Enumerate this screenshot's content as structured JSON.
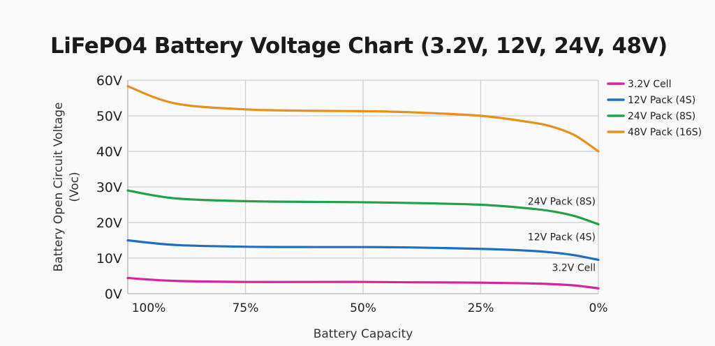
{
  "chart_data": {
    "type": "line",
    "title": "LiFePO4 Battery Voltage Chart (3.2V, 12V, 24V, 48V)",
    "xlabel": "Battery Capacity",
    "ylabel": "Battery Open Circuit Voltage",
    "ylabel_unit": "(Voc)",
    "x": [
      100,
      90,
      75,
      60,
      50,
      40,
      25,
      15,
      10,
      5,
      0
    ],
    "x_ticks": [
      100,
      75,
      50,
      25,
      0
    ],
    "x_tick_labels": [
      "100%",
      "75%",
      "50%",
      "25%",
      "0%"
    ],
    "y_ticks": [
      0,
      10,
      20,
      30,
      40,
      50,
      60
    ],
    "y_tick_labels": [
      "0V",
      "10V",
      "20V",
      "30V",
      "40V",
      "50V",
      "60V"
    ],
    "xlim": [
      100,
      0
    ],
    "ylim": [
      0,
      60
    ],
    "grid": true,
    "legend_position": "right",
    "series": [
      {
        "name": "3.2V Cell",
        "color": "#d6249f",
        "inline_label": "3.2V Cell",
        "values": [
          4.4,
          3.6,
          3.3,
          3.3,
          3.3,
          3.2,
          3.1,
          2.9,
          2.7,
          2.3,
          1.5
        ]
      },
      {
        "name": "12V Pack (4S)",
        "color": "#1f6fc0",
        "inline_label": "12V Pack (4S)",
        "values": [
          15.0,
          13.7,
          13.2,
          13.1,
          13.1,
          13.0,
          12.6,
          12.1,
          11.6,
          10.8,
          9.5
        ]
      },
      {
        "name": "24V Pack (8S)",
        "color": "#22a04a",
        "inline_label": "24V Pack (8S)",
        "values": [
          29.0,
          26.8,
          26.0,
          25.8,
          25.7,
          25.5,
          25.0,
          24.0,
          23.2,
          21.8,
          19.5
        ]
      },
      {
        "name": "48V Pack (16S)",
        "color": "#e8901e",
        "values": [
          58.3,
          53.5,
          51.8,
          51.4,
          51.3,
          51.0,
          50.0,
          48.3,
          47.0,
          44.5,
          40.0
        ]
      }
    ]
  }
}
